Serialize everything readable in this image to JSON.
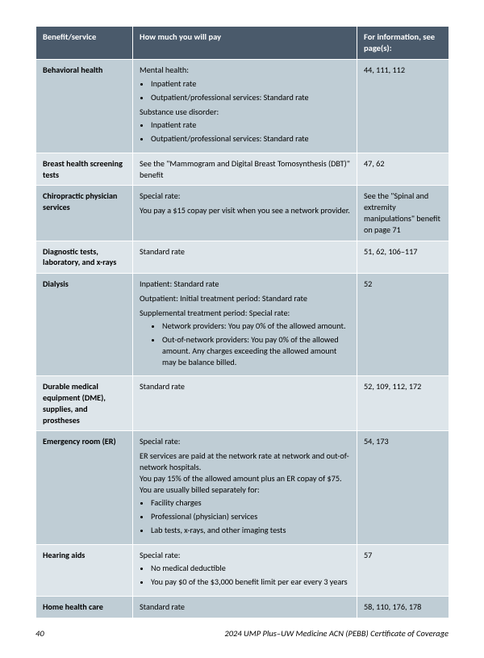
{
  "table": {
    "header": {
      "col1": "Benefit/service",
      "col2": "How much you will pay",
      "col3": "For information, see page(s):"
    },
    "rows": {
      "behavioral": {
        "benefit": "Behavioral health",
        "mh_label": "Mental health:",
        "mh_b1": "Inpatient rate",
        "mh_b2": "Outpatient/professional services: Standard rate",
        "sud_label": "Substance use disorder:",
        "sud_b1": "Inpatient rate",
        "sud_b2": "Outpatient/professional services: Standard rate",
        "pages": "44, 111, 112"
      },
      "breast": {
        "benefit": "Breast health screening tests",
        "pay": "See the \"Mammogram and Digital Breast Tomosynthesis (DBT)\" benefit",
        "pages": "47, 62"
      },
      "chiro": {
        "benefit": "Chiropractic physician services",
        "pay_l1": "Special rate:",
        "pay_l2": "You pay a $15 copay per visit when you see a network provider.",
        "pages": "See the \"Spinal and extremity manipulations\" benefit on page 71"
      },
      "diag": {
        "benefit": "Diagnostic tests, laboratory, and x-rays",
        "pay": "Standard rate",
        "pages": "51, 62, 106–117"
      },
      "dialysis": {
        "benefit": "Dialysis",
        "l1": "Inpatient: Standard rate",
        "l2": "Outpatient: Initial treatment period: Standard rate",
        "l3": "Supplemental treatment period: Special rate:",
        "b1": "Network providers: You pay 0% of the allowed amount.",
        "b2": "Out-of-network providers: You pay 0% of the allowed amount. Any charges exceeding the allowed amount may be balance billed.",
        "pages": "52"
      },
      "dme": {
        "benefit": "Durable medical equipment (DME), supplies, and prostheses",
        "pay": "Standard rate",
        "pages": "52, 109, 112, 172"
      },
      "er": {
        "benefit": "Emergency room (ER)",
        "l1": "Special rate:",
        "l2": "ER services are paid at the network rate at network and out-of-network hospitals.",
        "l3": "You pay 15% of the allowed amount plus an ER copay of $75. You are usually billed separately for:",
        "b1": "Facility charges",
        "b2": "Professional (physician) services",
        "b3": "Lab tests, x-rays, and other imaging tests",
        "pages": "54, 173"
      },
      "hearing": {
        "benefit": "Hearing aids",
        "l1": "Special rate:",
        "b1": "No medical deductible",
        "b2": "You pay $0 of the $3,000 benefit limit per ear every 3 years",
        "pages": "57"
      },
      "homehealth": {
        "benefit": "Home health care",
        "pay": "Standard rate",
        "pages": "58, 110, 176, 178"
      }
    }
  },
  "footer": {
    "page_num": "40",
    "doc_title": "2024 UMP Plus–UW Medicine ACN (PEBB) Certificate of Coverage"
  }
}
